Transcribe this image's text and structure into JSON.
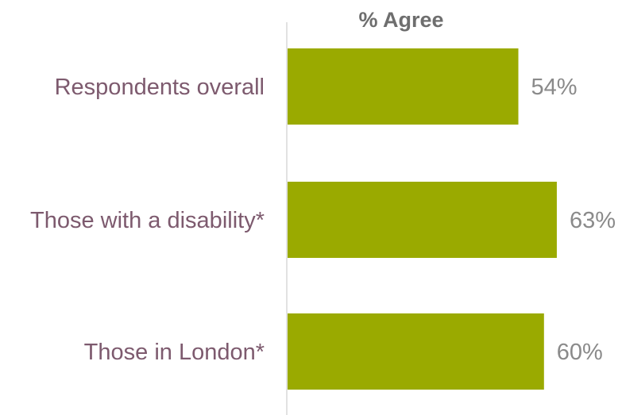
{
  "chart_data": {
    "type": "bar",
    "orientation": "horizontal",
    "title": "% Agree",
    "categories": [
      "Respondents overall",
      "Those with a disability*",
      "Those in London*"
    ],
    "values": [
      54,
      63,
      60
    ],
    "value_labels": [
      "54%",
      "63%",
      "60%"
    ],
    "xlim": [
      0,
      100
    ],
    "grid": false,
    "legend": "none",
    "colors": {
      "bar": "#9aaa00",
      "category_text": "#7d5a6e",
      "value_text": "#8a8a8a",
      "title_text": "#6e6e6e",
      "axis": "#d9d9d9"
    }
  }
}
